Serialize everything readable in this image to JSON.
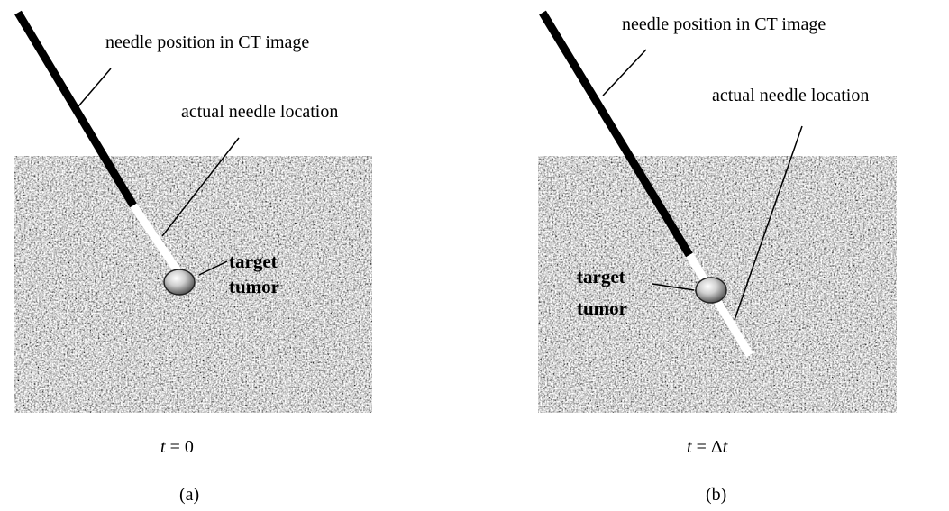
{
  "panels": [
    {
      "label_needle_ct": "needle position in CT image",
      "label_actual": "actual needle location",
      "tumor_line1": "target",
      "tumor_line2": "tumor",
      "time_var": "t",
      "time_rest": " = 0",
      "panel_label": "(a)"
    },
    {
      "label_needle_ct": "needle position in CT image",
      "label_actual": "actual needle location",
      "tumor_line1": "target",
      "tumor_line2": "tumor",
      "time_prefix": "t = Δ",
      "time_var": "t",
      "panel_label": "(b)"
    }
  ],
  "colors": {
    "needle_ct": "#000000",
    "needle_actual": "#ffffff",
    "noise_base": "#a8a8a8"
  }
}
